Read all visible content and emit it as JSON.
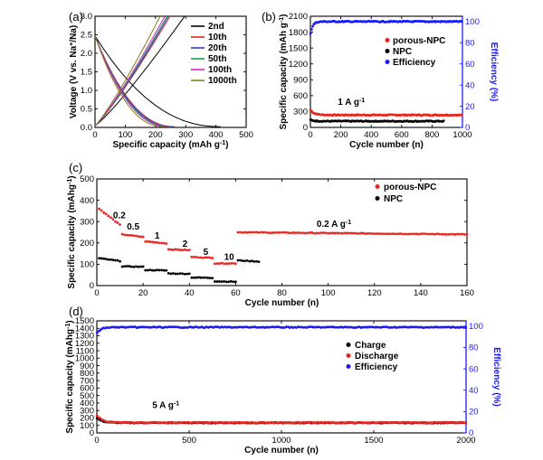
{
  "chart_data": [
    {
      "id": "a",
      "panel_label": "(a)",
      "type": "line",
      "xlabel": "Specific capacity (mAh g-1)",
      "ylabel": "Voltage (V vs. Na+/Na)",
      "xlim": [
        0,
        500
      ],
      "ylim": [
        0,
        3.0
      ],
      "xticks": [
        0,
        100,
        200,
        300,
        400,
        500
      ],
      "yticks": [
        0,
        0.5,
        1.0,
        1.5,
        2.0,
        2.5,
        3.0
      ],
      "ytick_labels": [
        "0.0",
        "0.5",
        "1.0",
        "1.5",
        "2.0",
        "2.5",
        "3.0"
      ],
      "legend_position": "top-right",
      "series": [
        {
          "name": "2nd",
          "color": "#000000",
          "discharge_end": 415,
          "charge_end": 305
        },
        {
          "name": "10th",
          "color": "#e8251c",
          "discharge_end": 265,
          "charge_end": 255
        },
        {
          "name": "20th",
          "color": "#2a3bd4",
          "discharge_end": 258,
          "charge_end": 250
        },
        {
          "name": "50th",
          "color": "#17a34a",
          "discharge_end": 250,
          "charge_end": 245
        },
        {
          "name": "100th",
          "color": "#d21fd1",
          "discharge_end": 243,
          "charge_end": 238
        },
        {
          "name": "1000th",
          "color": "#8c7d12",
          "discharge_end": 228,
          "charge_end": 222
        }
      ]
    },
    {
      "id": "b",
      "panel_label": "(b)",
      "type": "scatter",
      "xlabel": "Cycle number (n)",
      "ylabel": "Specific capacity (mAh g-1)",
      "y2label": "Efficiency (%)",
      "xlim": [
        0,
        1000
      ],
      "ylim": [
        0,
        2100
      ],
      "y2lim": [
        0,
        105
      ],
      "xticks": [
        0,
        200,
        400,
        600,
        800,
        1000
      ],
      "yticks": [
        0,
        300,
        600,
        900,
        1200,
        1500,
        1800,
        2100
      ],
      "y2ticks": [
        0,
        20,
        40,
        60,
        80,
        100
      ],
      "annotation": "1 A g-1",
      "legend_position": "middle-right",
      "series": [
        {
          "name": "porous-NPC",
          "color": "#e8251c",
          "axis": "left",
          "start": 330,
          "plateau": 235,
          "end_cycle": 1000
        },
        {
          "name": "NPC",
          "color": "#000000",
          "axis": "left",
          "start": 140,
          "plateau": 118,
          "end_cycle": 880
        },
        {
          "name": "Efficiency",
          "color": "#1a1aff",
          "axis": "right",
          "start": 88,
          "plateau": 100,
          "end_cycle": 1000
        }
      ]
    },
    {
      "id": "c",
      "panel_label": "(c)",
      "type": "scatter",
      "xlabel": "Cycle number (n)",
      "ylabel": "Specific capacity (mAhg-1)",
      "xlim": [
        0,
        160
      ],
      "ylim": [
        0,
        500
      ],
      "xticks": [
        0,
        20,
        40,
        60,
        80,
        100,
        120,
        140,
        160
      ],
      "yticks": [
        0,
        100,
        200,
        300,
        400,
        500
      ],
      "legend_position": "top-right",
      "rate_labels": [
        {
          "text": "0.2",
          "x": 7,
          "y": 315
        },
        {
          "text": "0.5",
          "x": 13,
          "y": 262
        },
        {
          "text": "1",
          "x": 25,
          "y": 220
        },
        {
          "text": "2",
          "x": 37,
          "y": 182
        },
        {
          "text": "5",
          "x": 46,
          "y": 145
        },
        {
          "text": "10",
          "x": 55,
          "y": 120
        },
        {
          "text": "0.2 A g-1",
          "x": 95,
          "y": 275
        }
      ],
      "series": [
        {
          "name": "porous-NPC",
          "color": "#e8251c",
          "segments": [
            {
              "from": 1,
              "to": 10,
              "start": 360,
              "end": 285
            },
            {
              "from": 11,
              "to": 20,
              "start": 240,
              "end": 228
            },
            {
              "from": 21,
              "to": 30,
              "start": 207,
              "end": 198
            },
            {
              "from": 31,
              "to": 40,
              "start": 170,
              "end": 166
            },
            {
              "from": 41,
              "to": 50,
              "start": 134,
              "end": 130
            },
            {
              "from": 51,
              "to": 60,
              "start": 104,
              "end": 104
            },
            {
              "from": 61,
              "to": 160,
              "start": 250,
              "end": 240
            }
          ]
        },
        {
          "name": "NPC",
          "color": "#000000",
          "segments": [
            {
              "from": 1,
              "to": 10,
              "start": 128,
              "end": 115
            },
            {
              "from": 11,
              "to": 20,
              "start": 90,
              "end": 88
            },
            {
              "from": 21,
              "to": 30,
              "start": 73,
              "end": 71
            },
            {
              "from": 31,
              "to": 40,
              "start": 57,
              "end": 55
            },
            {
              "from": 41,
              "to": 50,
              "start": 38,
              "end": 36
            },
            {
              "from": 51,
              "to": 60,
              "start": 20,
              "end": 18
            },
            {
              "from": 61,
              "to": 70,
              "start": 118,
              "end": 113
            }
          ]
        }
      ]
    },
    {
      "id": "d",
      "panel_label": "(d)",
      "type": "scatter",
      "xlabel": "Cycle number (n)",
      "ylabel": "Specific capacity (mAhg-1)",
      "y2label": "Efficiency (%)",
      "xlim": [
        0,
        2000
      ],
      "ylim": [
        0,
        1500
      ],
      "y2lim": [
        0,
        105
      ],
      "xticks": [
        0,
        500,
        1000,
        1500,
        2000
      ],
      "yticks": [
        0,
        100,
        200,
        300,
        400,
        500,
        600,
        700,
        800,
        900,
        1000,
        1100,
        1200,
        1300,
        1400,
        1500
      ],
      "y2ticks": [
        0,
        20,
        40,
        60,
        80,
        100
      ],
      "annotation": "5 A g-1",
      "legend_position": "upper-right",
      "series": [
        {
          "name": "Charge",
          "color": "#000000",
          "axis": "left",
          "start": 200,
          "plateau": 135,
          "end_cycle": 2000
        },
        {
          "name": "Discharge",
          "color": "#e8251c",
          "axis": "left",
          "start": 240,
          "plateau": 138,
          "end_cycle": 2000
        },
        {
          "name": "Efficiency",
          "color": "#1a1aff",
          "axis": "right",
          "start": 93,
          "plateau": 99,
          "end_cycle": 2000
        }
      ]
    }
  ]
}
